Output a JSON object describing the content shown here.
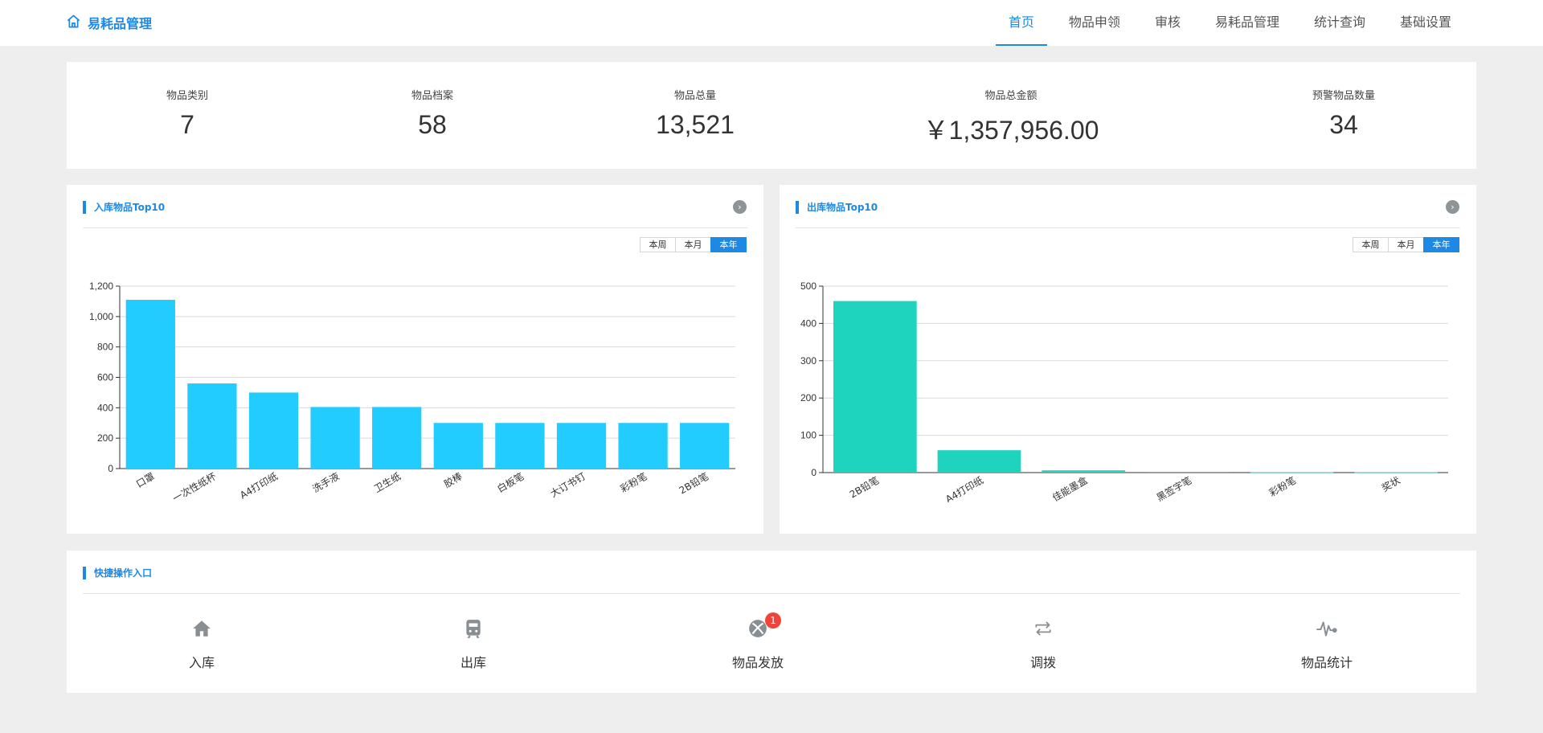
{
  "brand": {
    "title": "易耗品管理",
    "icon": "home-icon"
  },
  "nav": [
    {
      "label": "首页",
      "active": true
    },
    {
      "label": "物品申领",
      "active": false
    },
    {
      "label": "审核",
      "active": false
    },
    {
      "label": "易耗品管理",
      "active": false
    },
    {
      "label": "统计查询",
      "active": false
    },
    {
      "label": "基础设置",
      "active": false
    }
  ],
  "stats": [
    {
      "label": "物品类别",
      "value": "7"
    },
    {
      "label": "物品档案",
      "value": "58"
    },
    {
      "label": "物品总量",
      "value": "13,521"
    },
    {
      "label": "物品总金额",
      "value": "￥1,357,956.00"
    },
    {
      "label": "预警物品数量",
      "value": "34"
    }
  ],
  "range_buttons": {
    "week": "本周",
    "month": "本月",
    "year": "本年",
    "selected": "本年"
  },
  "inbound": {
    "title": "入库物品Top10"
  },
  "outbound": {
    "title": "出库物品Top10"
  },
  "quick": {
    "title": "快捷操作入口",
    "items": [
      {
        "label": "入库",
        "icon": "home-icon"
      },
      {
        "label": "出库",
        "icon": "train-icon"
      },
      {
        "label": "物品发放",
        "icon": "xbox-icon",
        "badge": "1"
      },
      {
        "label": "调拨",
        "icon": "transfer-icon"
      },
      {
        "label": "物品统计",
        "icon": "pulse-icon"
      }
    ]
  },
  "colors": {
    "accent": "#1e88e5",
    "inbound_bar": "#22ccff",
    "outbound_bar": "#1ed4bf",
    "badge": "#f0433a"
  },
  "chart_data": [
    {
      "type": "bar",
      "title": "入库物品Top10",
      "categories": [
        "口罩",
        "一次性纸杯",
        "A4打印纸",
        "洗手液",
        "卫生纸",
        "胶棒",
        "白板笔",
        "大订书钉",
        "彩粉笔",
        "2B铅笔"
      ],
      "values": [
        1110,
        560,
        500,
        405,
        405,
        300,
        300,
        300,
        300,
        300
      ],
      "ylim": [
        0,
        1200
      ],
      "yticks": [
        "0",
        "200",
        "400",
        "600",
        "800",
        "1,000",
        "1,200"
      ],
      "grid": true,
      "color": "#22ccff"
    },
    {
      "type": "bar",
      "title": "出库物品Top10",
      "categories": [
        "2B铅笔",
        "A4打印纸",
        "佳能墨盒",
        "黑签字笔",
        "彩粉笔",
        "奖状"
      ],
      "values": [
        460,
        60,
        6,
        2,
        1,
        1
      ],
      "ylim": [
        0,
        500
      ],
      "yticks": [
        "0",
        "100",
        "200",
        "300",
        "400",
        "500"
      ],
      "grid": true,
      "color": "#1ed4bf"
    }
  ]
}
